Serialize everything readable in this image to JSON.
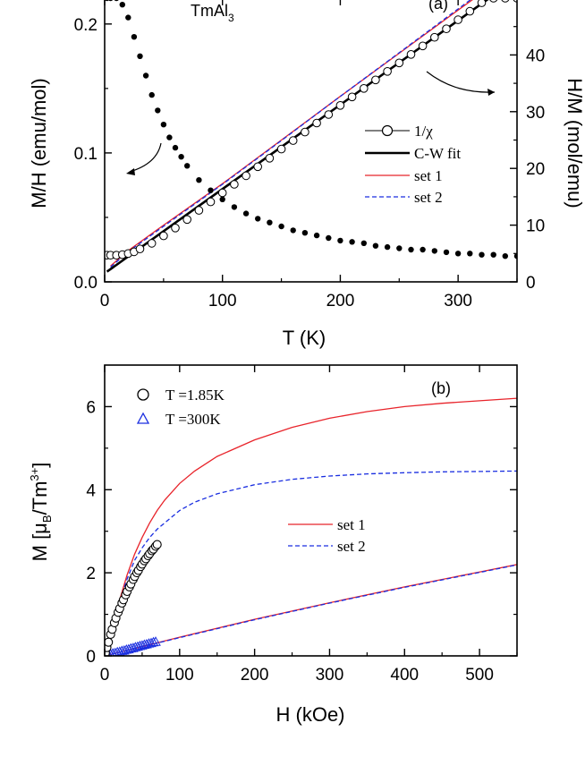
{
  "chart_data": [
    {
      "type": "line",
      "panel_label": "(a)",
      "compound_main": "TmAl",
      "compound_sub": "3",
      "xlabel": "T (K)",
      "ylabel_left": "M/H (emu/mol)",
      "ylabel_right": "H/M (mol/emu)",
      "xlim": [
        0,
        350
      ],
      "ylim_left": [
        0,
        0.22
      ],
      "ylim_right": [
        0,
        50
      ],
      "x_ticks": [
        "0",
        "100",
        "200",
        "300"
      ],
      "y_ticks_left": [
        "0.0",
        "0.1",
        "0.2"
      ],
      "y_ticks_right": [
        "0",
        "10",
        "20",
        "30",
        "40"
      ],
      "legend": {
        "placement": "center-right",
        "entries": [
          "1/χ",
          "C-W fit",
          "set 1",
          "set 2"
        ]
      },
      "series": [
        {
          "name": "M/H (data)",
          "axis": "left",
          "x": [
            2,
            5,
            10,
            15,
            20,
            25,
            30,
            35,
            40,
            45,
            50,
            55,
            60,
            65,
            70,
            80,
            90,
            100,
            110,
            120,
            130,
            140,
            150,
            160,
            170,
            180,
            190,
            200,
            210,
            220,
            230,
            240,
            250,
            260,
            270,
            280,
            290,
            300,
            310,
            320,
            330,
            340,
            350
          ],
          "y": [
            0.22,
            0.22,
            0.22,
            0.215,
            0.205,
            0.19,
            0.175,
            0.16,
            0.145,
            0.133,
            0.122,
            0.112,
            0.104,
            0.097,
            0.09,
            0.079,
            0.071,
            0.064,
            0.058,
            0.053,
            0.049,
            0.046,
            0.043,
            0.04,
            0.038,
            0.036,
            0.034,
            0.032,
            0.031,
            0.03,
            0.028,
            0.027,
            0.026,
            0.025,
            0.025,
            0.024,
            0.023,
            0.022,
            0.022,
            0.021,
            0.021,
            0.02,
            0.02
          ]
        },
        {
          "name": "1/χ",
          "axis": "right",
          "x": [
            2,
            5,
            10,
            15,
            20,
            25,
            30,
            40,
            50,
            60,
            70,
            80,
            90,
            100,
            110,
            120,
            130,
            140,
            150,
            160,
            170,
            180,
            190,
            200,
            210,
            220,
            230,
            240,
            250,
            260,
            270,
            280,
            290,
            300,
            310,
            320,
            330,
            340,
            350
          ],
          "y": [
            4.7,
            4.7,
            4.7,
            4.8,
            5.0,
            5.3,
            5.8,
            6.8,
            8.1,
            9.5,
            11.0,
            12.6,
            14.1,
            15.7,
            17.2,
            18.7,
            20.3,
            21.8,
            23.4,
            24.9,
            26.4,
            28.0,
            29.5,
            31.1,
            32.6,
            34.1,
            35.6,
            37.1,
            38.6,
            40.1,
            41.6,
            43.1,
            44.6,
            46.2,
            47.7,
            49.2,
            50.0,
            50.0,
            50.0
          ]
        },
        {
          "name": "C-W fit",
          "axis": "right",
          "x": [
            2,
            350
          ],
          "y": [
            1.8,
            53.5
          ]
        },
        {
          "name": "set 1",
          "axis": "right",
          "x": [
            5,
            20,
            50,
            100,
            150,
            200,
            250,
            300,
            350
          ],
          "y": [
            2.8,
            5.5,
            10.0,
            17.3,
            25.0,
            32.7,
            40.3,
            47.9,
            55.4
          ]
        },
        {
          "name": "set 2",
          "axis": "right",
          "x": [
            5,
            20,
            50,
            100,
            150,
            200,
            250,
            300,
            350
          ],
          "y": [
            2.6,
            5.3,
            9.8,
            17.2,
            24.9,
            32.7,
            40.4,
            48.1,
            55.8
          ]
        }
      ]
    },
    {
      "type": "line",
      "panel_label": "(b)",
      "xlabel": "H (kOe)",
      "ylabel_main": "M [μ",
      "ylabel_sub": "B",
      "ylabel_rest": "/Tm",
      "ylabel_sup": "3+",
      "ylabel_end": "]",
      "xlim": [
        0,
        550
      ],
      "ylim": [
        0,
        7
      ],
      "x_ticks": [
        "0",
        "100",
        "200",
        "300",
        "400",
        "500"
      ],
      "y_ticks": [
        "0",
        "2",
        "4",
        "6"
      ],
      "legend_top": {
        "placement": "top-left",
        "entries": [
          "T =1.85K",
          "T =300K"
        ]
      },
      "legend_bottom": {
        "placement": "center",
        "entries": [
          "set 1",
          "set 2"
        ]
      },
      "series": [
        {
          "name": "T =1.85K",
          "x": [
            1,
            3,
            5,
            8,
            10,
            13,
            15,
            18,
            20,
            23,
            25,
            28,
            30,
            33,
            35,
            38,
            40,
            43,
            45,
            48,
            50,
            53,
            55,
            58,
            60,
            63,
            65,
            68,
            70
          ],
          "y": [
            0.07,
            0.2,
            0.33,
            0.52,
            0.64,
            0.8,
            0.91,
            1.05,
            1.14,
            1.27,
            1.35,
            1.47,
            1.55,
            1.66,
            1.73,
            1.84,
            1.91,
            2.0,
            2.06,
            2.15,
            2.21,
            2.29,
            2.34,
            2.41,
            2.46,
            2.53,
            2.57,
            2.64,
            2.68
          ]
        },
        {
          "name": "T =300K",
          "x": [
            2,
            5,
            8,
            11,
            14,
            17,
            20,
            23,
            26,
            29,
            32,
            35,
            38,
            41,
            44,
            47,
            50,
            53,
            56,
            59,
            62,
            65,
            68
          ],
          "y": [
            0.01,
            0.03,
            0.04,
            0.06,
            0.07,
            0.09,
            0.1,
            0.12,
            0.13,
            0.15,
            0.16,
            0.18,
            0.19,
            0.21,
            0.22,
            0.24,
            0.25,
            0.27,
            0.28,
            0.3,
            0.31,
            0.33,
            0.34
          ]
        },
        {
          "name": "set 1 (1.85K)",
          "x": [
            0,
            10,
            20,
            30,
            40,
            50,
            60,
            70,
            80,
            100,
            120,
            150,
            200,
            250,
            300,
            350,
            400,
            450,
            500,
            550
          ],
          "y": [
            0,
            0.7,
            1.35,
            1.95,
            2.45,
            2.85,
            3.2,
            3.5,
            3.75,
            4.15,
            4.45,
            4.8,
            5.2,
            5.5,
            5.72,
            5.88,
            6.0,
            6.08,
            6.14,
            6.2
          ]
        },
        {
          "name": "set 2 (1.85K)",
          "x": [
            0,
            10,
            20,
            30,
            40,
            50,
            60,
            70,
            80,
            100,
            120,
            150,
            200,
            250,
            300,
            350,
            400,
            450,
            500,
            550
          ],
          "y": [
            0,
            0.68,
            1.3,
            1.85,
            2.3,
            2.6,
            2.85,
            3.05,
            3.2,
            3.5,
            3.7,
            3.9,
            4.12,
            4.25,
            4.33,
            4.38,
            4.41,
            4.43,
            4.44,
            4.45
          ]
        },
        {
          "name": "set 1 (300K)",
          "x": [
            0,
            100,
            200,
            300,
            400,
            500,
            550
          ],
          "y": [
            0,
            0.45,
            0.88,
            1.28,
            1.66,
            2.02,
            2.2
          ]
        },
        {
          "name": "set 2 (300K)",
          "x": [
            0,
            100,
            200,
            300,
            400,
            500,
            550
          ],
          "y": [
            0,
            0.44,
            0.87,
            1.27,
            1.65,
            2.01,
            2.19
          ]
        }
      ]
    }
  ],
  "colors": {
    "set1": "#e8242b",
    "set2": "#1a2ee0",
    "data": "#000000",
    "triangle": "#1a2ee0"
  }
}
